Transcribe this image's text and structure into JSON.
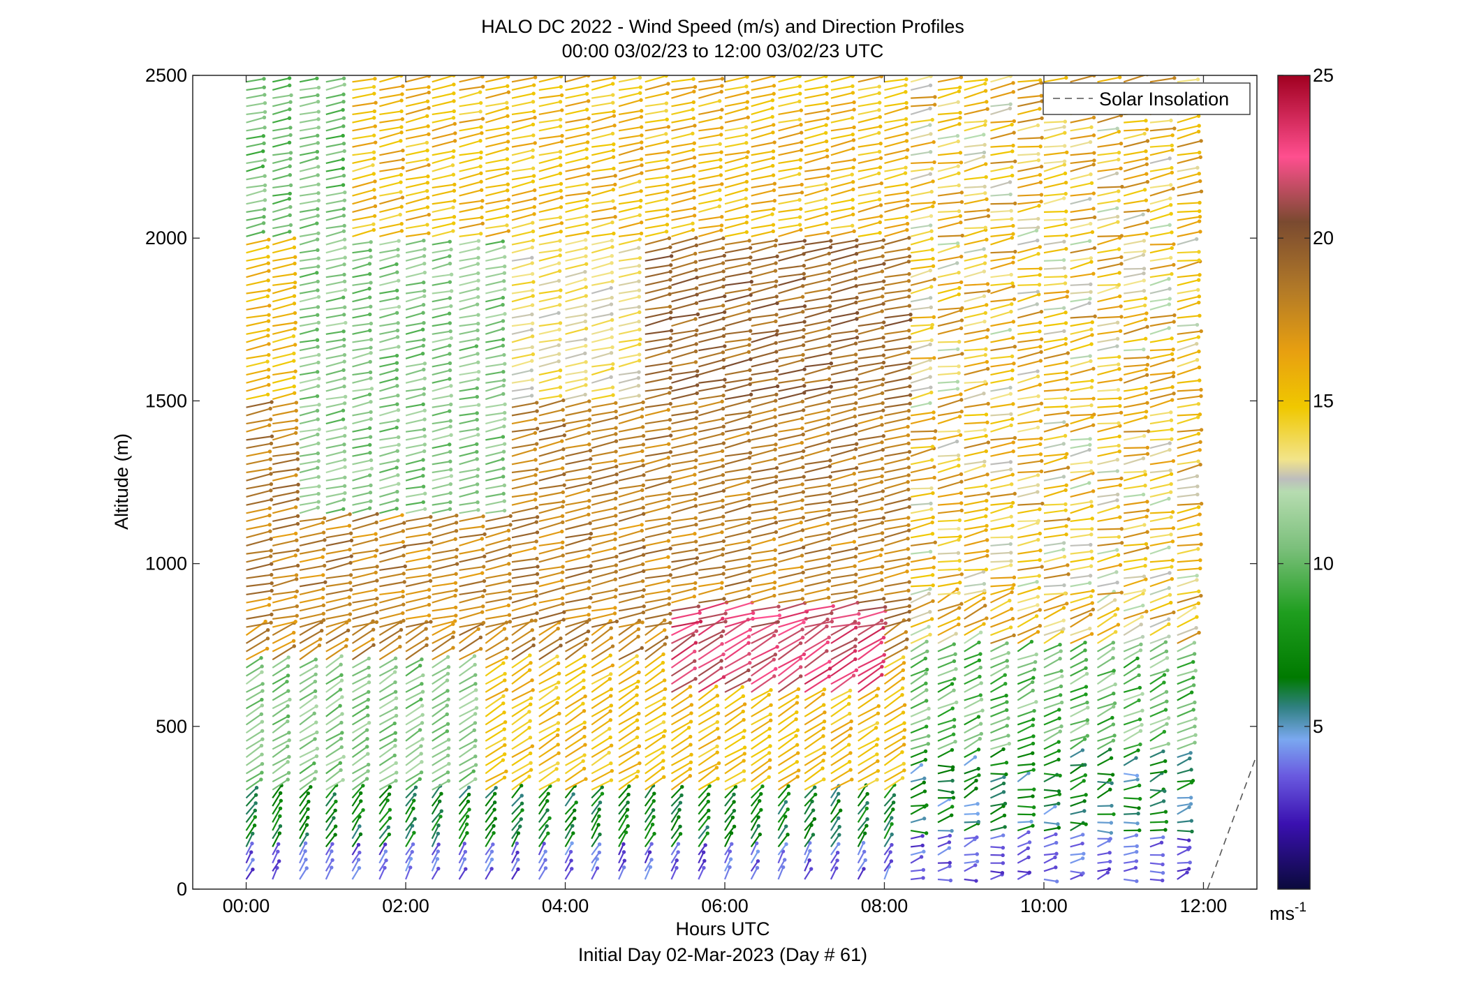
{
  "chart_data": {
    "type": "wind-barb-profile",
    "title": "HALO DC 2022 - Wind Speed (m/s) and Direction Profiles",
    "subtitle": "00:00 03/02/23 to 12:00 03/02/23  UTC",
    "xlabel": "Hours UTC",
    "xlabel_note": "Initial Day 02-Mar-2023 (Day # 61)",
    "ylabel": "Altitude (m)",
    "xlim": [
      -0.67,
      12.67
    ],
    "ylim": [
      0,
      2500
    ],
    "x_ticks": [
      {
        "value": 0,
        "label": "00:00"
      },
      {
        "value": 2,
        "label": "02:00"
      },
      {
        "value": 4,
        "label": "04:00"
      },
      {
        "value": 6,
        "label": "06:00"
      },
      {
        "value": 8,
        "label": "08:00"
      },
      {
        "value": 10,
        "label": "10:00"
      },
      {
        "value": 12,
        "label": "12:00"
      }
    ],
    "y_ticks": [
      {
        "value": 0,
        "label": "0"
      },
      {
        "value": 500,
        "label": "500"
      },
      {
        "value": 1000,
        "label": "1000"
      },
      {
        "value": 1500,
        "label": "1500"
      },
      {
        "value": 2000,
        "label": "2000"
      },
      {
        "value": 2500,
        "label": "2500"
      }
    ],
    "colorbar": {
      "min": 0,
      "max": 25,
      "unit_label": "ms",
      "unit_exponent": "-1",
      "ticks": [
        {
          "value": 5,
          "label": "5"
        },
        {
          "value": 10,
          "label": "10"
        },
        {
          "value": 15,
          "label": "15"
        },
        {
          "value": 20,
          "label": "20"
        },
        {
          "value": 25,
          "label": "25"
        }
      ],
      "stops": [
        {
          "v": 0,
          "color": "#0a0a3c"
        },
        {
          "v": 2,
          "color": "#3a10b0"
        },
        {
          "v": 3.5,
          "color": "#6a5be0"
        },
        {
          "v": 4.6,
          "color": "#7aa8f0"
        },
        {
          "v": 5.6,
          "color": "#2f8080"
        },
        {
          "v": 6.5,
          "color": "#007a00"
        },
        {
          "v": 8.5,
          "color": "#1f9e1f"
        },
        {
          "v": 10.5,
          "color": "#7cc07c"
        },
        {
          "v": 12.2,
          "color": "#b6dcb0"
        },
        {
          "v": 12.6,
          "color": "#bdbdbd"
        },
        {
          "v": 13.2,
          "color": "#f2e48a"
        },
        {
          "v": 14.8,
          "color": "#f0c800"
        },
        {
          "v": 16.5,
          "color": "#e8a010"
        },
        {
          "v": 18.5,
          "color": "#b07828"
        },
        {
          "v": 20.5,
          "color": "#7a4a30"
        },
        {
          "v": 22.5,
          "color": "#ff4f8f"
        },
        {
          "v": 25,
          "color": "#a00020"
        }
      ]
    },
    "legend": {
      "label": "Solar Insolation",
      "position": "top-right",
      "line_style": "dashed",
      "color": "#555555"
    },
    "solar_insolation_line": {
      "points": [
        [
          12.05,
          0
        ],
        [
          12.65,
          400
        ]
      ]
    },
    "profile_times_h": [
      0,
      0.33,
      0.67,
      1,
      1.33,
      1.67,
      2,
      2.33,
      2.67,
      3,
      3.33,
      3.67,
      4,
      4.33,
      4.67,
      5,
      5.33,
      5.67,
      6,
      6.33,
      6.67,
      7,
      7.33,
      7.67,
      8,
      8.33,
      8.67,
      9,
      9.33,
      9.67,
      10,
      10.33,
      10.67,
      11,
      11.33,
      11.67
    ],
    "altitude_levels_m": [
      30,
      55,
      80,
      105,
      130,
      155,
      180,
      205,
      230,
      255,
      280,
      305,
      330,
      355,
      380,
      405,
      430,
      455,
      480,
      505,
      530,
      555,
      580,
      605,
      630,
      655,
      680,
      705,
      730,
      755,
      780,
      805,
      830,
      855,
      880,
      905,
      930,
      955,
      980,
      1005,
      1030,
      1055,
      1080,
      1105,
      1130,
      1155,
      1180,
      1205,
      1230,
      1255,
      1280,
      1305,
      1330,
      1355,
      1380,
      1405,
      1430,
      1455,
      1480,
      1505,
      1530,
      1555,
      1580,
      1605,
      1630,
      1655,
      1680,
      1705,
      1730,
      1755,
      1780,
      1805,
      1830,
      1855,
      1880,
      1905,
      1930,
      1955,
      1980,
      2005,
      2030,
      2055,
      2080,
      2105,
      2130,
      2155,
      2180,
      2205,
      2230,
      2255,
      2280,
      2305,
      2330,
      2355,
      2380,
      2405,
      2430,
      2455,
      2480
    ],
    "speed_regimes_m_s": [
      {
        "region": "near surface 0-300 m, 00:00-07:30",
        "speed": [
          2,
          7
        ]
      },
      {
        "region": "300-700 m, 00:00-03:00",
        "speed": [
          9,
          12
        ]
      },
      {
        "region": "300-700 m, 03:00-08:00",
        "speed": [
          14,
          17
        ]
      },
      {
        "region": "600-900 m, 05:30-08:00 jet",
        "speed": [
          21,
          24
        ]
      },
      {
        "region": "900-1500 m, 00:00-08:30",
        "speed": [
          16,
          20
        ]
      },
      {
        "region": "1200-2000 m, 00:30-03:30",
        "speed": [
          9,
          12
        ]
      },
      {
        "region": "1300-2400 m, 03:30-05:00",
        "speed": [
          12,
          15
        ]
      },
      {
        "region": "1500-1900 m, 05:00-08:30",
        "speed": [
          18,
          21
        ]
      },
      {
        "region": "2000-2500 m, 00:00-01:00",
        "speed": [
          9,
          11
        ]
      },
      {
        "region": "2000-2500 m, 01:00-12:00",
        "speed": [
          14,
          17
        ]
      },
      {
        "region": "0-400 m, 08:00-11:40",
        "speed": [
          2,
          8
        ]
      }
    ]
  }
}
